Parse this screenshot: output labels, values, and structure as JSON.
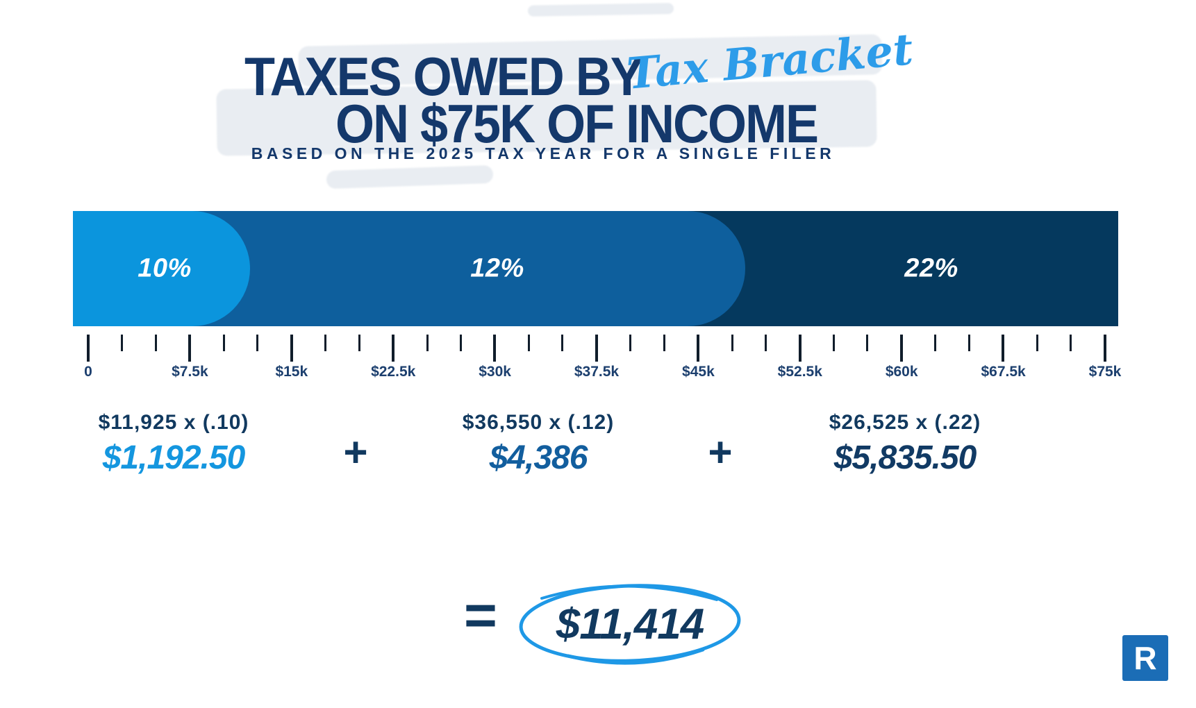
{
  "title": {
    "line1": "TAXES OWED BY",
    "script_accent": "Tax Bracket",
    "line2": "ON $75K OF INCOME",
    "subtitle": "BASED ON THE 2025 TAX YEAR FOR A SINGLE FILER"
  },
  "chart_data": {
    "type": "bar",
    "variant": "horizontal-stacked-number-line",
    "title": "Taxes owed by tax bracket on $75k of income",
    "subtitle": "Based on the 2025 tax year for a single filer",
    "x_axis": {
      "min": 0,
      "max": 75000,
      "tick_labels": [
        "0",
        "$7.5k",
        "$15k",
        "$22.5k",
        "$30k",
        "$37.5k",
        "$45k",
        "$52.5k",
        "$60k",
        "$67.5k",
        "$75k"
      ],
      "major_tick_interval": 7500,
      "minor_ticks_between_major": 2,
      "grid": false
    },
    "segments": [
      {
        "label": "10%",
        "rate": 0.1,
        "income_from": 0,
        "income_to": 11925,
        "taxable_amount": 11925,
        "tax": 1192.5,
        "color": "#0b95dd"
      },
      {
        "label": "12%",
        "rate": 0.12,
        "income_from": 11925,
        "income_to": 48475,
        "taxable_amount": 36550,
        "tax": 4386,
        "color": "#0e5f9d"
      },
      {
        "label": "22%",
        "rate": 0.22,
        "income_from": 48475,
        "income_to": 75000,
        "taxable_amount": 26525,
        "tax": 5835.5,
        "color": "#05395e"
      }
    ],
    "calculations": [
      {
        "expression": "$11,925 x (.10)",
        "result": "$1,192.50",
        "result_color": "#1496df"
      },
      {
        "expression": "$36,550 x (.12)",
        "result": "$4,386",
        "result_color": "#125e9e"
      },
      {
        "expression": "$26,525 x (.22)",
        "result": "$5,835.50",
        "result_color": "#113a64"
      }
    ],
    "operators": [
      "+",
      "+"
    ],
    "total": {
      "equals_sign": "=",
      "value": "$11,414",
      "value_numeric": 11414
    }
  },
  "colors": {
    "background": "#ffffff",
    "heading_navy": "#14386b",
    "script_blue": "#2d9ce9",
    "axis_tick": "#101d2b",
    "axis_label_navy": "#1c3f6e",
    "scribble_blue": "#1e98e6",
    "brush_gray": "#e9edf2",
    "logo_blue": "#1b6db6"
  },
  "logo": {
    "letter": "R"
  }
}
